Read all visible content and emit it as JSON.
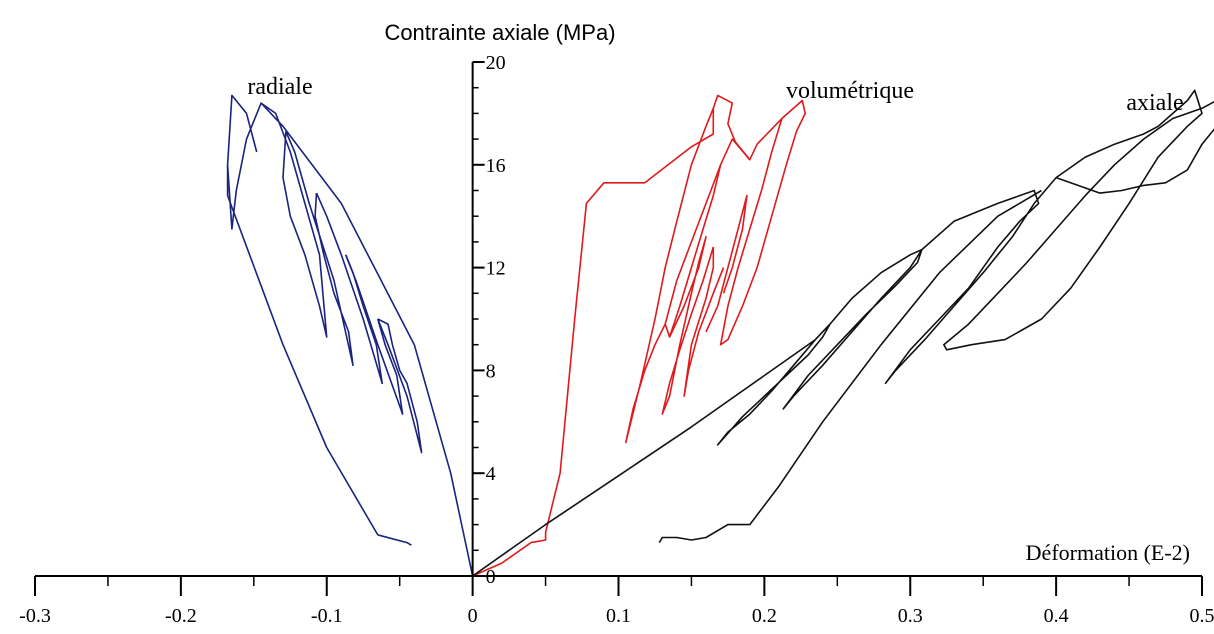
{
  "chart_data": {
    "type": "line",
    "xlabel": "Déformation (E-2)",
    "ylabel": "Contrainte axiale (MPa)",
    "xlim": [
      -0.3,
      0.5
    ],
    "ylim": [
      0,
      20
    ],
    "x_ticks": [
      -0.3,
      -0.2,
      -0.1,
      0,
      0.1,
      0.2,
      0.3,
      0.4,
      0.5
    ],
    "x_tick_labels": [
      "-0.3",
      "-0.2",
      "-0.1",
      "0",
      "0.1",
      "0.2",
      "0.3",
      "0.4",
      "0.5"
    ],
    "y_ticks": [
      0,
      4,
      8,
      12,
      16,
      20
    ],
    "y_tick_labels": [
      "0",
      "4",
      "8",
      "12",
      "16",
      "20"
    ],
    "grid": false,
    "series": [
      {
        "name": "radiale",
        "color": "#1a237e",
        "segments": [
          [
            [
              0.0,
              0.0
            ],
            [
              -0.015,
              4.0
            ],
            [
              -0.04,
              9.0
            ],
            [
              -0.09,
              14.5
            ],
            [
              -0.13,
              17.5
            ],
            [
              -0.145,
              18.4
            ],
            [
              -0.135,
              18.0
            ],
            [
              -0.125,
              16.5
            ],
            [
              -0.115,
              14.5
            ],
            [
              -0.105,
              12.5
            ],
            [
              -0.1,
              9.3
            ],
            [
              -0.105,
              10.5
            ],
            [
              -0.115,
              12.5
            ],
            [
              -0.125,
              14.0
            ],
            [
              -0.13,
              15.5
            ],
            [
              -0.128,
              17.3
            ]
          ],
          [
            [
              -0.128,
              17.3
            ],
            [
              -0.122,
              16.5
            ],
            [
              -0.112,
              14.5
            ],
            [
              -0.095,
              11.5
            ],
            [
              -0.082,
              8.2
            ],
            [
              -0.085,
              9.5
            ],
            [
              -0.095,
              11.0
            ],
            [
              -0.102,
              12.5
            ],
            [
              -0.108,
              14.0
            ],
            [
              -0.107,
              14.9
            ]
          ],
          [
            [
              -0.107,
              14.9
            ],
            [
              -0.1,
              14.0
            ],
            [
              -0.09,
              12.5
            ],
            [
              -0.075,
              10.0
            ],
            [
              -0.062,
              7.5
            ],
            [
              -0.066,
              9.0
            ],
            [
              -0.075,
              10.5
            ],
            [
              -0.082,
              11.8
            ],
            [
              -0.087,
              12.5
            ]
          ],
          [
            [
              -0.087,
              12.5
            ],
            [
              -0.08,
              11.5
            ],
            [
              -0.065,
              9.0
            ],
            [
              -0.048,
              6.3
            ],
            [
              -0.052,
              7.8
            ],
            [
              -0.06,
              9.0
            ],
            [
              -0.065,
              10.0
            ]
          ],
          [
            [
              -0.065,
              10.0
            ],
            [
              -0.058,
              9.0
            ],
            [
              -0.045,
              7.0
            ],
            [
              -0.035,
              4.8
            ],
            [
              -0.038,
              6.0
            ],
            [
              -0.045,
              7.5
            ],
            [
              -0.05,
              8.0
            ],
            [
              -0.055,
              9.0
            ],
            [
              -0.058,
              9.8
            ],
            [
              -0.065,
              10.0
            ]
          ],
          [
            [
              -0.145,
              18.4
            ],
            [
              -0.155,
              17.0
            ],
            [
              -0.162,
              15.0
            ],
            [
              -0.165,
              13.5
            ],
            [
              -0.168,
              16.0
            ],
            [
              -0.165,
              18.7
            ],
            [
              -0.155,
              18.0
            ],
            [
              -0.148,
              16.5
            ]
          ],
          [
            [
              -0.168,
              16.0
            ],
            [
              -0.168,
              14.8
            ],
            [
              -0.13,
              9.0
            ],
            [
              -0.1,
              5.0
            ],
            [
              -0.065,
              1.6
            ],
            [
              -0.045,
              1.3
            ],
            [
              -0.042,
              1.2
            ]
          ]
        ]
      },
      {
        "name": "volumétrique",
        "color": "#e0191c",
        "segments": [
          [
            [
              0.0,
              0.0
            ],
            [
              0.02,
              0.5
            ],
            [
              0.04,
              1.3
            ],
            [
              0.05,
              1.4
            ],
            [
              0.05,
              1.7
            ],
            [
              0.06,
              4.0
            ],
            [
              0.07,
              10.0
            ],
            [
              0.078,
              14.5
            ],
            [
              0.09,
              15.3
            ],
            [
              0.118,
              15.3
            ],
            [
              0.15,
              16.7
            ],
            [
              0.165,
              17.2
            ],
            [
              0.165,
              18.2
            ],
            [
              0.168,
              18.7
            ],
            [
              0.178,
              18.4
            ],
            [
              0.175,
              17.6
            ],
            [
              0.18,
              16.9
            ],
            [
              0.19,
              16.2
            ],
            [
              0.195,
              16.8
            ],
            [
              0.212,
              17.8
            ],
            [
              0.226,
              18.5
            ],
            [
              0.228,
              18.0
            ],
            [
              0.222,
              17.3
            ],
            [
              0.215,
              16.0
            ],
            [
              0.205,
              14.0
            ],
            [
              0.195,
              12.0
            ],
            [
              0.185,
              10.5
            ],
            [
              0.175,
              9.2
            ],
            [
              0.17,
              9.0
            ],
            [
              0.175,
              10.5
            ],
            [
              0.182,
              12.0
            ],
            [
              0.19,
              13.5
            ],
            [
              0.198,
              15.0
            ],
            [
              0.205,
              16.5
            ],
            [
              0.212,
              17.8
            ]
          ],
          [
            [
              0.165,
              18.2
            ],
            [
              0.16,
              17.5
            ],
            [
              0.15,
              16.0
            ],
            [
              0.14,
              13.8
            ],
            [
              0.132,
              12.0
            ],
            [
              0.125,
              10.0
            ],
            [
              0.115,
              7.5
            ],
            [
              0.105,
              5.2
            ],
            [
              0.11,
              6.5
            ],
            [
              0.118,
              8.0
            ],
            [
              0.125,
              9.0
            ],
            [
              0.132,
              9.8
            ],
            [
              0.135,
              9.3
            ],
            [
              0.142,
              10.5
            ],
            [
              0.15,
              12.0
            ],
            [
              0.158,
              13.5
            ],
            [
              0.165,
              14.8
            ],
            [
              0.17,
              16.0
            ],
            [
              0.178,
              17.0
            ],
            [
              0.19,
              16.2
            ]
          ],
          [
            [
              0.132,
              9.8
            ],
            [
              0.14,
              11.5
            ],
            [
              0.15,
              13.0
            ],
            [
              0.16,
              14.5
            ],
            [
              0.17,
              16.0
            ]
          ],
          [
            [
              0.135,
              9.3
            ],
            [
              0.145,
              10.5
            ],
            [
              0.155,
              12.0
            ],
            [
              0.16,
              13.2
            ],
            [
              0.155,
              12.2
            ],
            [
              0.15,
              11.0
            ],
            [
              0.142,
              9.0
            ],
            [
              0.135,
              7.0
            ],
            [
              0.13,
              6.3
            ],
            [
              0.135,
              7.5
            ],
            [
              0.142,
              8.8
            ],
            [
              0.15,
              10.2
            ],
            [
              0.158,
              11.5
            ],
            [
              0.165,
              12.8
            ]
          ],
          [
            [
              0.165,
              12.8
            ],
            [
              0.165,
              12.0
            ],
            [
              0.16,
              10.8
            ],
            [
              0.15,
              9.0
            ],
            [
              0.145,
              7.0
            ],
            [
              0.148,
              8.0
            ],
            [
              0.155,
              9.5
            ],
            [
              0.165,
              11.0
            ],
            [
              0.172,
              12.0
            ]
          ],
          [
            [
              0.16,
              9.5
            ],
            [
              0.168,
              10.5
            ],
            [
              0.175,
              12.0
            ],
            [
              0.182,
              13.5
            ],
            [
              0.188,
              14.8
            ],
            [
              0.185,
              13.5
            ],
            [
              0.178,
              12.0
            ],
            [
              0.172,
              11.0
            ]
          ]
        ]
      },
      {
        "name": "axiale",
        "color": "#111111",
        "segments": [
          [
            [
              0.0,
              0.0
            ],
            [
              0.05,
              2.0
            ],
            [
              0.1,
              3.9
            ],
            [
              0.15,
              5.8
            ],
            [
              0.2,
              7.8
            ],
            [
              0.235,
              9.2
            ],
            [
              0.245,
              9.8
            ],
            [
              0.24,
              9.3
            ],
            [
              0.23,
              8.6
            ],
            [
              0.215,
              7.8
            ],
            [
              0.2,
              7.0
            ],
            [
              0.185,
              6.2
            ],
            [
              0.168,
              5.1
            ],
            [
              0.175,
              5.6
            ],
            [
              0.19,
              6.3
            ],
            [
              0.205,
              7.2
            ],
            [
              0.22,
              8.2
            ],
            [
              0.235,
              9.2
            ],
            [
              0.245,
              9.8
            ],
            [
              0.26,
              10.8
            ],
            [
              0.28,
              11.8
            ],
            [
              0.3,
              12.5
            ],
            [
              0.308,
              12.7
            ],
            [
              0.305,
              12.2
            ],
            [
              0.29,
              11.3
            ],
            [
              0.27,
              10.2
            ],
            [
              0.25,
              9.0
            ],
            [
              0.23,
              7.8
            ],
            [
              0.213,
              6.5
            ],
            [
              0.22,
              7.0
            ],
            [
              0.24,
              8.2
            ],
            [
              0.26,
              9.5
            ],
            [
              0.28,
              10.8
            ],
            [
              0.3,
              12.0
            ],
            [
              0.308,
              12.7
            ],
            [
              0.33,
              13.8
            ],
            [
              0.36,
              14.5
            ],
            [
              0.385,
              15.0
            ],
            [
              0.388,
              14.5
            ],
            [
              0.375,
              13.8
            ],
            [
              0.36,
              12.8
            ],
            [
              0.34,
              11.2
            ],
            [
              0.32,
              10.0
            ],
            [
              0.3,
              8.8
            ],
            [
              0.283,
              7.5
            ],
            [
              0.29,
              8.0
            ],
            [
              0.31,
              9.2
            ],
            [
              0.33,
              10.5
            ],
            [
              0.35,
              11.8
            ],
            [
              0.37,
              13.2
            ],
            [
              0.385,
              14.5
            ],
            [
              0.4,
              15.5
            ],
            [
              0.42,
              16.3
            ],
            [
              0.44,
              16.8
            ],
            [
              0.46,
              17.2
            ],
            [
              0.47,
              17.5
            ],
            [
              0.48,
              18.0
            ],
            [
              0.49,
              18.5
            ],
            [
              0.495,
              18.9
            ],
            [
              0.5,
              18.0
            ],
            [
              0.49,
              17.5
            ],
            [
              0.47,
              16.3
            ],
            [
              0.45,
              14.5
            ],
            [
              0.43,
              12.8
            ],
            [
              0.41,
              11.2
            ],
            [
              0.39,
              10.0
            ],
            [
              0.365,
              9.2
            ],
            [
              0.342,
              9.0
            ],
            [
              0.325,
              8.8
            ],
            [
              0.323,
              9.0
            ],
            [
              0.34,
              9.8
            ],
            [
              0.36,
              11.0
            ],
            [
              0.38,
              12.2
            ],
            [
              0.4,
              13.5
            ],
            [
              0.42,
              14.8
            ],
            [
              0.44,
              16.0
            ],
            [
              0.46,
              17.0
            ],
            [
              0.48,
              17.8
            ],
            [
              0.5,
              18.2
            ],
            [
              0.51,
              18.5
            ]
          ],
          [
            [
              0.4,
              15.5
            ],
            [
              0.415,
              15.2
            ],
            [
              0.43,
              14.9
            ],
            [
              0.445,
              15.0
            ],
            [
              0.46,
              15.2
            ],
            [
              0.475,
              15.3
            ],
            [
              0.49,
              15.8
            ],
            [
              0.5,
              16.8
            ],
            [
              0.51,
              17.5
            ],
            [
              0.51,
              18.2
            ]
          ],
          [
            [
              0.128,
              1.3
            ],
            [
              0.13,
              1.5
            ],
            [
              0.14,
              1.5
            ],
            [
              0.15,
              1.4
            ],
            [
              0.16,
              1.5
            ],
            [
              0.175,
              2.0
            ],
            [
              0.19,
              2.0
            ],
            [
              0.21,
              3.5
            ],
            [
              0.24,
              6.0
            ],
            [
              0.28,
              9.0
            ],
            [
              0.32,
              11.8
            ],
            [
              0.36,
              14.0
            ],
            [
              0.39,
              15.0
            ]
          ]
        ]
      }
    ]
  }
}
